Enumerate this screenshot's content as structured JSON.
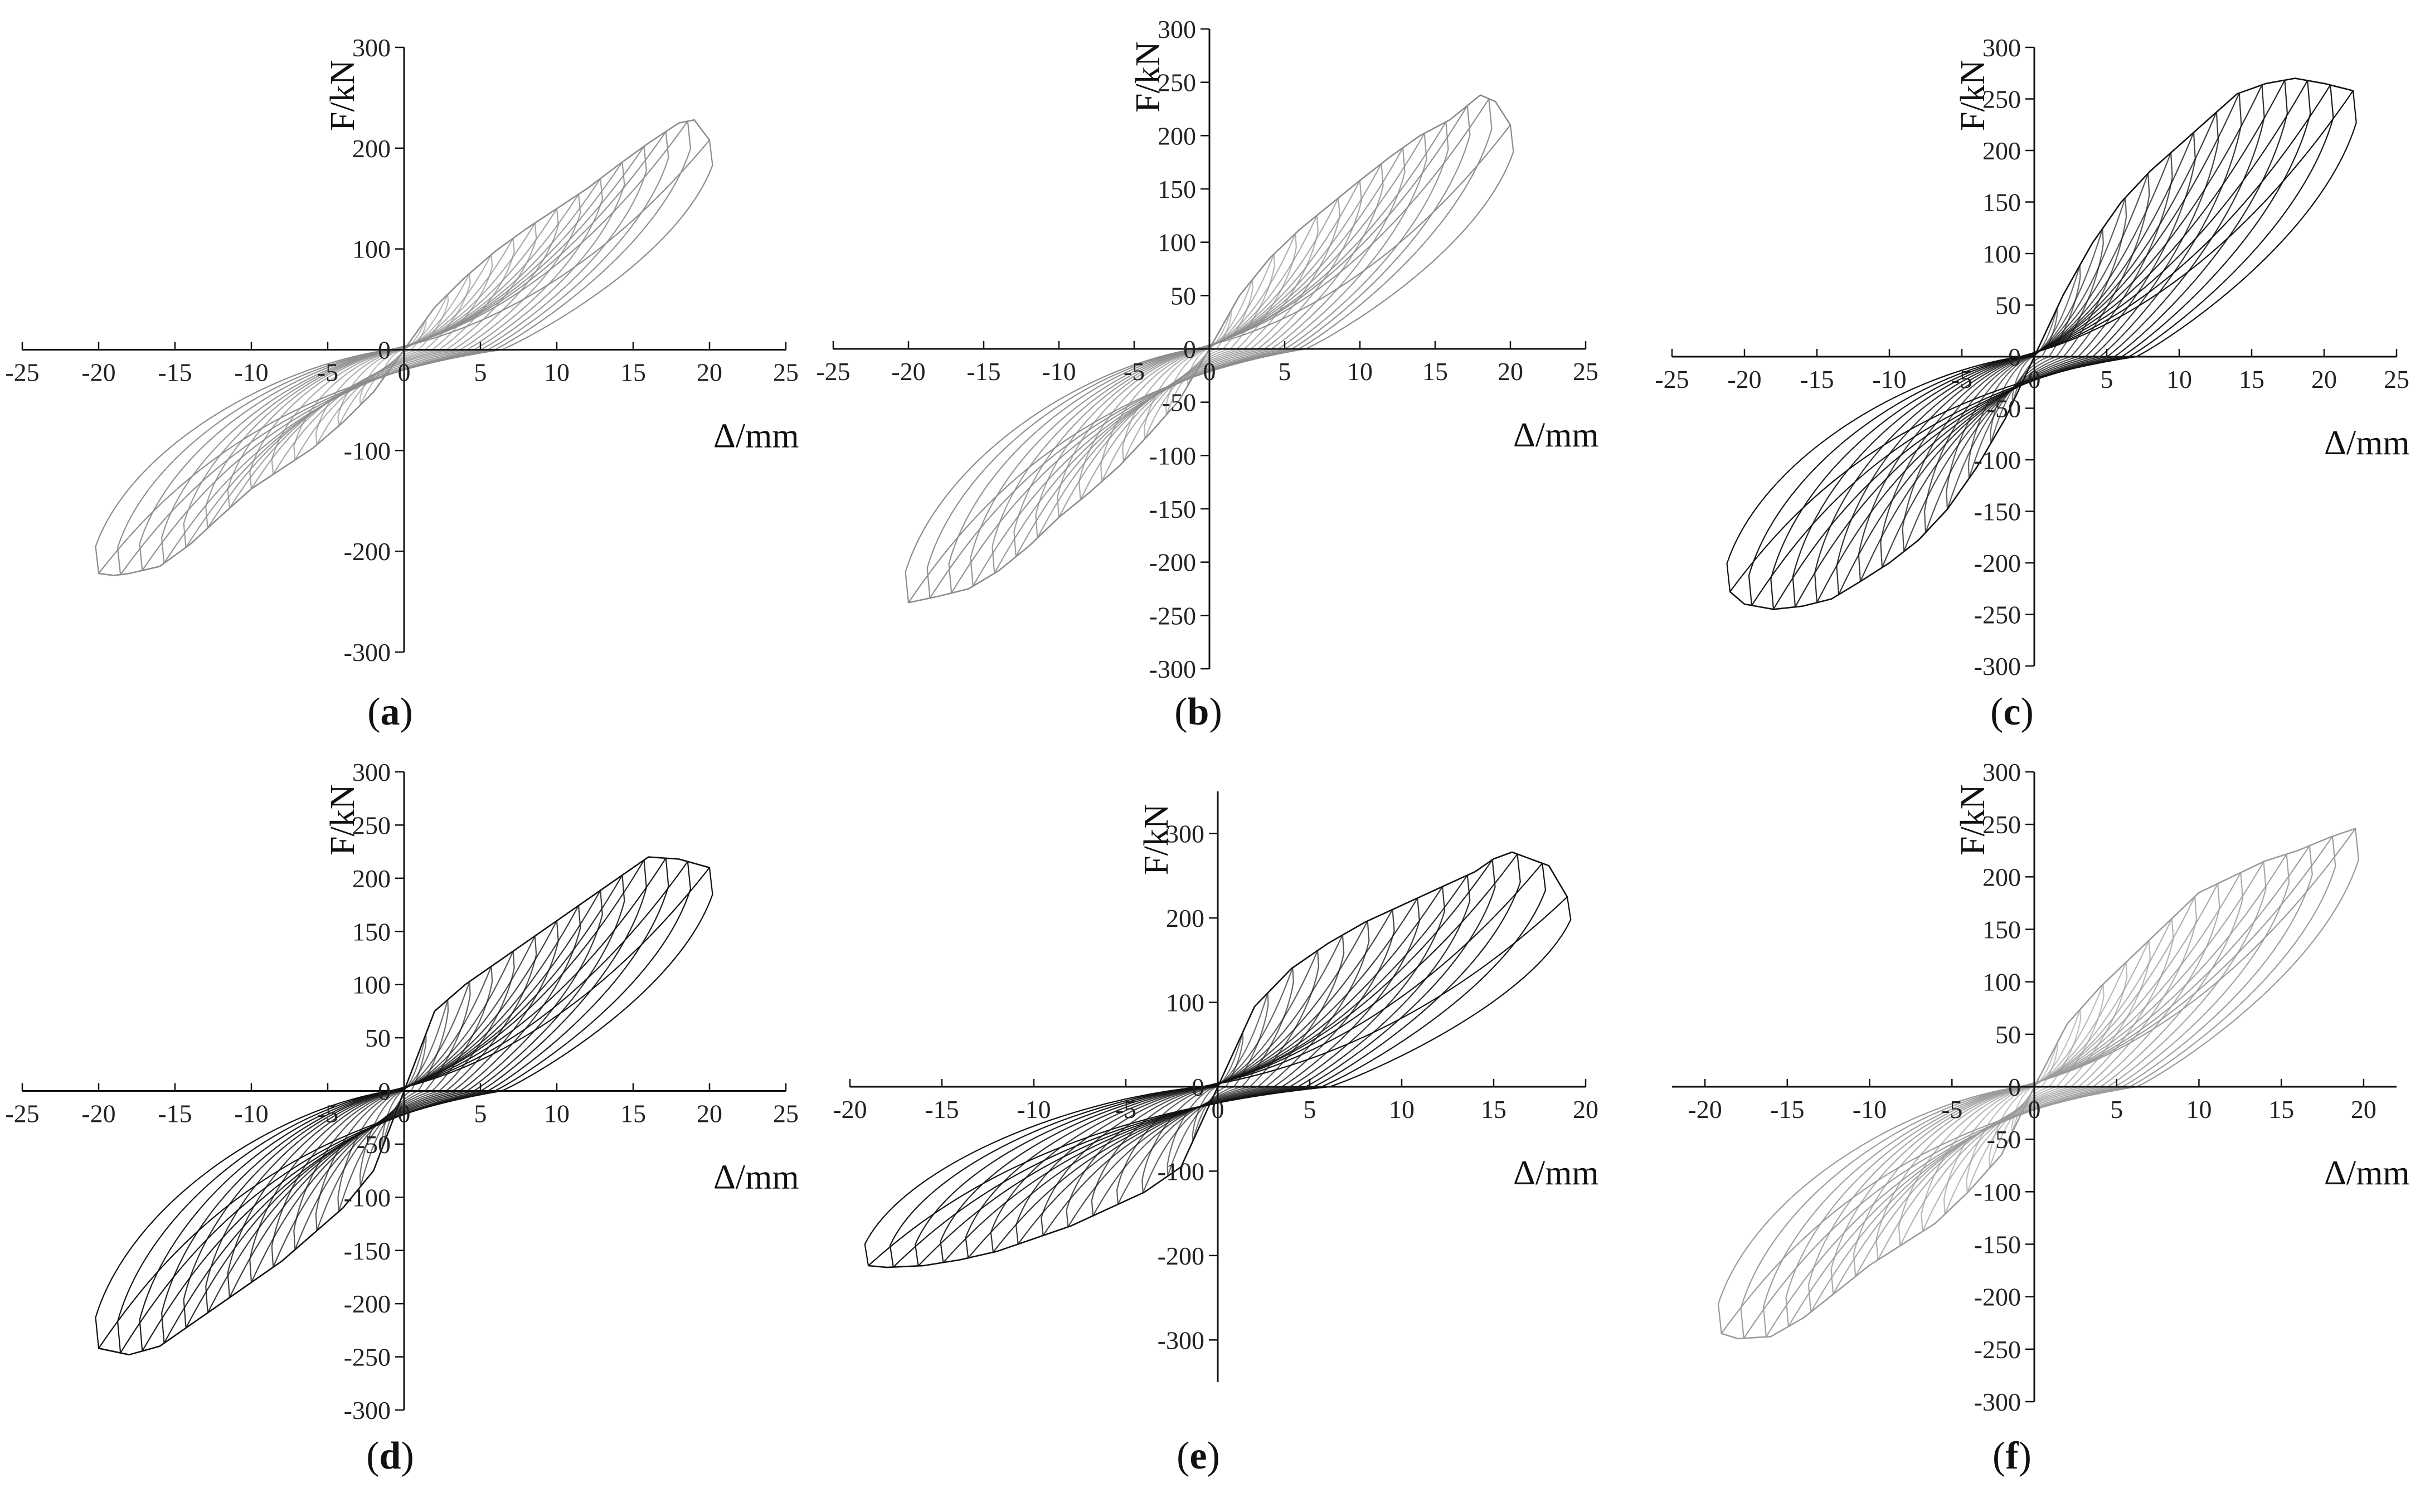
{
  "panels": [
    {
      "label": "a",
      "type": "line",
      "xlabel": "Δ/mm",
      "ylabel": "F/kN",
      "xlim": [
        -25,
        25
      ],
      "ylim": [
        -300,
        300
      ],
      "xticks": [
        "-25",
        "-20",
        "-15",
        "-10",
        "-5",
        "0",
        "5",
        "10",
        "15",
        "20",
        "25"
      ],
      "yticks": [
        "300",
        "200",
        "100",
        "0",
        "-100",
        "-200",
        "-300"
      ],
      "line_color": "#8c8c8c",
      "envelope_pos": [
        [
          0,
          0
        ],
        [
          2,
          42
        ],
        [
          4,
          72
        ],
        [
          6,
          98
        ],
        [
          8,
          120
        ],
        [
          10,
          140
        ],
        [
          12,
          160
        ],
        [
          14,
          183
        ],
        [
          16,
          205
        ],
        [
          18,
          225
        ],
        [
          19,
          228
        ],
        [
          20,
          208
        ]
      ],
      "envelope_neg": [
        [
          0,
          0
        ],
        [
          -2,
          -42
        ],
        [
          -4,
          -72
        ],
        [
          -6,
          -98
        ],
        [
          -8,
          -118
        ],
        [
          -10,
          -138
        ],
        [
          -12,
          -165
        ],
        [
          -14,
          -193
        ],
        [
          -16,
          -215
        ],
        [
          -18,
          -222
        ],
        [
          -19,
          -224
        ],
        [
          -20,
          -222
        ]
      ]
    },
    {
      "label": "b",
      "type": "line",
      "xlabel": "Δ/mm",
      "ylabel": "F/kN",
      "xlim": [
        -25,
        25
      ],
      "ylim": [
        -300,
        300
      ],
      "xticks": [
        "-25",
        "-20",
        "-15",
        "-10",
        "-5",
        "0",
        "5",
        "10",
        "15",
        "20",
        "25"
      ],
      "yticks": [
        "300",
        "250",
        "200",
        "150",
        "100",
        "50",
        "0",
        "-50",
        "-100",
        "-150",
        "-200",
        "-250",
        "-300"
      ],
      "line_color": "#8c8c8c",
      "envelope_pos": [
        [
          0,
          0
        ],
        [
          2,
          50
        ],
        [
          4,
          85
        ],
        [
          6,
          112
        ],
        [
          8,
          135
        ],
        [
          10,
          158
        ],
        [
          12,
          180
        ],
        [
          14,
          200
        ],
        [
          16,
          215
        ],
        [
          18,
          238
        ],
        [
          19,
          232
        ],
        [
          20,
          210
        ]
      ],
      "envelope_neg": [
        [
          0,
          0
        ],
        [
          -2,
          -48
        ],
        [
          -4,
          -80
        ],
        [
          -6,
          -110
        ],
        [
          -8,
          -135
        ],
        [
          -10,
          -158
        ],
        [
          -12,
          -185
        ],
        [
          -14,
          -208
        ],
        [
          -16,
          -225
        ],
        [
          -18,
          -232
        ],
        [
          -19,
          -235
        ],
        [
          -20,
          -238
        ]
      ]
    },
    {
      "label": "c",
      "type": "line",
      "xlabel": "Δ/mm",
      "ylabel": "F/kN",
      "xlim": [
        -25,
        25
      ],
      "ylim": [
        -300,
        300
      ],
      "xticks": [
        "-25",
        "-20",
        "-15",
        "-10",
        "-5",
        "0",
        "5",
        "10",
        "15",
        "20",
        "25"
      ],
      "yticks": [
        "300",
        "250",
        "200",
        "150",
        "100",
        "50",
        "0",
        "-50",
        "-100",
        "-150",
        "-200",
        "-250",
        "-300"
      ],
      "line_color": "#111111",
      "envelope_pos": [
        [
          0,
          0
        ],
        [
          2,
          60
        ],
        [
          4,
          110
        ],
        [
          6,
          150
        ],
        [
          8,
          180
        ],
        [
          10,
          205
        ],
        [
          12,
          230
        ],
        [
          14,
          255
        ],
        [
          16,
          265
        ],
        [
          18,
          270
        ],
        [
          20,
          265
        ],
        [
          22,
          258
        ]
      ],
      "envelope_neg": [
        [
          0,
          0
        ],
        [
          -2,
          -60
        ],
        [
          -4,
          -108
        ],
        [
          -6,
          -148
        ],
        [
          -8,
          -178
        ],
        [
          -10,
          -200
        ],
        [
          -12,
          -218
        ],
        [
          -14,
          -235
        ],
        [
          -16,
          -242
        ],
        [
          -18,
          -245
        ],
        [
          -20,
          -240
        ],
        [
          -21,
          -228
        ]
      ]
    },
    {
      "label": "d",
      "type": "line",
      "xlabel": "Δ/mm",
      "ylabel": "F/kN",
      "xlim": [
        -25,
        25
      ],
      "ylim": [
        -300,
        300
      ],
      "xticks": [
        "-25",
        "-20",
        "-15",
        "-10",
        "-5",
        "0",
        "5",
        "10",
        "15",
        "20",
        "25"
      ],
      "yticks": [
        "300",
        "250",
        "200",
        "150",
        "100",
        "50",
        "0",
        "-50",
        "-100",
        "-150",
        "-200",
        "-250",
        "-300"
      ],
      "line_color": "#111111",
      "envelope_pos": [
        [
          0,
          0
        ],
        [
          2,
          75
        ],
        [
          4,
          100
        ],
        [
          6,
          120
        ],
        [
          8,
          140
        ],
        [
          10,
          160
        ],
        [
          12,
          180
        ],
        [
          14,
          200
        ],
        [
          16,
          220
        ],
        [
          18,
          218
        ],
        [
          20,
          210
        ]
      ],
      "envelope_neg": [
        [
          0,
          0
        ],
        [
          -2,
          -75
        ],
        [
          -4,
          -110
        ],
        [
          -6,
          -135
        ],
        [
          -8,
          -160
        ],
        [
          -10,
          -180
        ],
        [
          -12,
          -200
        ],
        [
          -14,
          -220
        ],
        [
          -16,
          -240
        ],
        [
          -18,
          -248
        ],
        [
          -20,
          -242
        ]
      ]
    },
    {
      "label": "e",
      "type": "line",
      "xlabel": "Δ/mm",
      "ylabel": "F/kN",
      "xlim": [
        -20,
        20
      ],
      "ylim": [
        -350,
        350
      ],
      "xticks": [
        "-20",
        "-15",
        "-10",
        "-5",
        "0",
        "5",
        "10",
        "15",
        "20"
      ],
      "yticks": [
        "300",
        "200",
        "100",
        "0",
        "-100",
        "-200",
        "-300"
      ],
      "line_color": "#111111",
      "envelope_pos": [
        [
          0,
          0
        ],
        [
          2,
          95
        ],
        [
          4,
          140
        ],
        [
          6,
          170
        ],
        [
          8,
          195
        ],
        [
          10,
          215
        ],
        [
          12,
          235
        ],
        [
          14,
          255
        ],
        [
          15,
          270
        ],
        [
          16,
          278
        ],
        [
          18,
          262
        ],
        [
          19,
          225
        ]
      ],
      "envelope_neg": [
        [
          0,
          0
        ],
        [
          -2,
          -95
        ],
        [
          -4,
          -125
        ],
        [
          -6,
          -145
        ],
        [
          -8,
          -165
        ],
        [
          -10,
          -180
        ],
        [
          -12,
          -195
        ],
        [
          -14,
          -205
        ],
        [
          -16,
          -212
        ],
        [
          -18,
          -214
        ],
        [
          -19,
          -212
        ]
      ]
    },
    {
      "label": "f",
      "type": "line",
      "xlabel": "Δ/mm",
      "ylabel": "F/kN",
      "xlim": [
        -22,
        22
      ],
      "ylim": [
        -300,
        300
      ],
      "xticks": [
        "-20",
        "-15",
        "-10",
        "-5",
        "0",
        "5",
        "10",
        "15",
        "20"
      ],
      "yticks": [
        "300",
        "250",
        "200",
        "150",
        "100",
        "50",
        "0",
        "-50",
        "-100",
        "-150",
        "-200",
        "-250",
        "-300"
      ],
      "line_color": "#9a9a9a",
      "envelope_pos": [
        [
          0,
          0
        ],
        [
          2,
          60
        ],
        [
          4,
          95
        ],
        [
          6,
          125
        ],
        [
          8,
          155
        ],
        [
          10,
          185
        ],
        [
          12,
          200
        ],
        [
          14,
          215
        ],
        [
          16,
          225
        ],
        [
          18,
          238
        ],
        [
          19.5,
          246
        ]
      ],
      "envelope_neg": [
        [
          0,
          0
        ],
        [
          -2,
          -65
        ],
        [
          -4,
          -100
        ],
        [
          -6,
          -130
        ],
        [
          -8,
          -150
        ],
        [
          -10,
          -170
        ],
        [
          -12,
          -195
        ],
        [
          -14,
          -220
        ],
        [
          -16,
          -238
        ],
        [
          -18,
          -240
        ],
        [
          -19,
          -235
        ]
      ]
    }
  ]
}
